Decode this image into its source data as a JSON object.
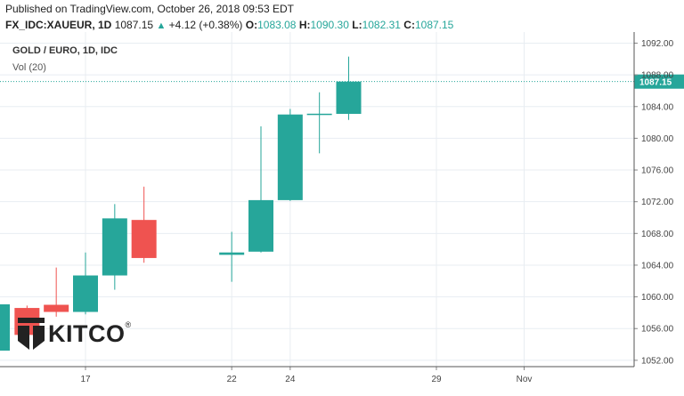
{
  "header": {
    "published": "Published on TradingView.com, October 26, 2018 09:53 EDT",
    "symbol": "FX_IDC:XAUEUR, 1D",
    "last": "1087.15",
    "change": "+4.12 (+0.38%)",
    "open_label": "O:",
    "open": "1083.08",
    "high_label": "H:",
    "high": "1090.30",
    "low_label": "L:",
    "low": "1082.31",
    "close_label": "C:",
    "close": "1087.15"
  },
  "legend": {
    "title": "GOLD / EURO, 1D, IDC",
    "volume": "Vol (20)"
  },
  "logo": {
    "text": "KITCO",
    "mark": "®"
  },
  "colors": {
    "up": "#26a69a",
    "down": "#ef5350",
    "grid": "#e8edf2",
    "last_line": "#26a69a",
    "price_tag": "#26a69a"
  },
  "chart_data": {
    "type": "candlestick",
    "title": "GOLD / EURO, 1D, IDC",
    "x_tick_labels": [
      "17",
      "22",
      "24",
      "29",
      "Nov"
    ],
    "y_ticks": [
      1052,
      1056,
      1060,
      1064,
      1068,
      1072,
      1076,
      1080,
      1084,
      1088,
      1092
    ],
    "y_tick_labels": [
      "1052.00",
      "1056.00",
      "1060.00",
      "1064.00",
      "1068.00",
      "1072.00",
      "1076.00",
      "1080.00",
      "1084.00",
      "1088.00",
      "1092.00"
    ],
    "ylim": [
      1051.2,
      1093.4
    ],
    "last_price": 1087.15,
    "last_price_label": "1087.15",
    "grid": true,
    "candles": [
      {
        "date": "2018-10-15",
        "open": 1058.6,
        "high": 1058.9,
        "low": 1055.0,
        "close": 1055.2
      },
      {
        "date": "2018-10-16",
        "open": 1059.0,
        "high": 1063.7,
        "low": 1057.5,
        "close": 1058.1
      },
      {
        "date": "2018-10-17",
        "open": 1058.1,
        "high": 1065.6,
        "low": 1057.8,
        "close": 1062.7
      },
      {
        "date": "2018-10-18",
        "open": 1062.7,
        "high": 1071.7,
        "low": 1060.9,
        "close": 1069.9
      },
      {
        "date": "2018-10-19",
        "open": 1069.7,
        "high": 1073.9,
        "low": 1064.3,
        "close": 1064.9
      },
      {
        "date": "2018-10-22",
        "open": 1065.3,
        "high": 1068.2,
        "low": 1061.9,
        "close": 1065.6
      },
      {
        "date": "2018-10-23",
        "open": 1065.7,
        "high": 1081.5,
        "low": 1065.6,
        "close": 1072.2
      },
      {
        "date": "2018-10-24",
        "open": 1072.2,
        "high": 1083.7,
        "low": 1072.1,
        "close": 1083.0
      },
      {
        "date": "2018-10-25",
        "open": 1083.0,
        "high": 1085.8,
        "low": 1078.1,
        "close": 1083.1
      },
      {
        "date": "2018-10-26",
        "open": 1083.08,
        "high": 1090.3,
        "low": 1082.31,
        "close": 1087.15
      }
    ]
  }
}
